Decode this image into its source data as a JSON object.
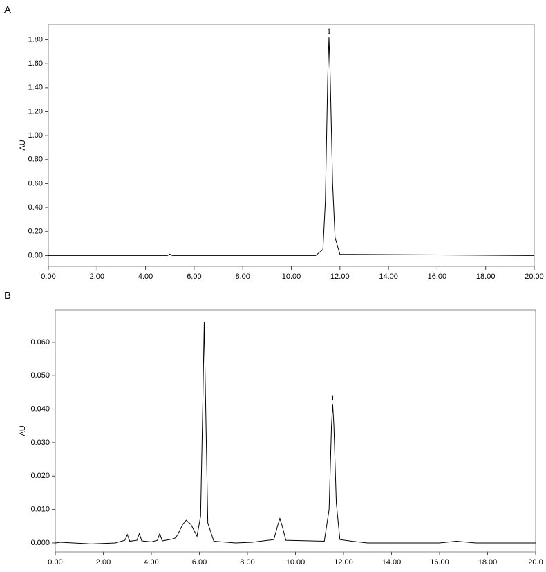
{
  "chart_data": [
    {
      "type": "line",
      "label": "A",
      "y_label": "AU",
      "x": [
        0,
        2.8,
        4.9,
        5.0,
        5.1,
        11.0,
        11.3,
        11.4,
        11.5,
        11.55,
        11.6,
        11.7,
        11.8,
        12.0,
        20
      ],
      "values": [
        0,
        0,
        0,
        0.012,
        0,
        0,
        0.05,
        0.45,
        1.5,
        1.82,
        1.5,
        0.6,
        0.15,
        0.01,
        0
      ],
      "color": "#000000",
      "xlim": [
        0,
        20
      ],
      "ylim": [
        -0.09,
        1.93
      ],
      "xticks": [
        {
          "value": 0,
          "label": "0.00"
        },
        {
          "value": 2,
          "label": "2.00"
        },
        {
          "value": 4,
          "label": "4.00"
        },
        {
          "value": 6,
          "label": "6.00"
        },
        {
          "value": 8,
          "label": "8.00"
        },
        {
          "value": 10,
          "label": "10.00"
        },
        {
          "value": 12,
          "label": "12.00"
        },
        {
          "value": 14,
          "label": "14.00"
        },
        {
          "value": 16,
          "label": "16.00"
        },
        {
          "value": 18,
          "label": "18.00"
        },
        {
          "value": 20,
          "label": "20.00"
        }
      ],
      "yticks": [
        {
          "value": 0,
          "label": "0.00"
        },
        {
          "value": 0.2,
          "label": "0.20"
        },
        {
          "value": 0.4,
          "label": "0.40"
        },
        {
          "value": 0.6,
          "label": "0.60"
        },
        {
          "value": 0.8,
          "label": "0.80"
        },
        {
          "value": 1.0,
          "label": "1.00"
        },
        {
          "value": 1.2,
          "label": "1.20"
        },
        {
          "value": 1.4,
          "label": "1.40"
        },
        {
          "value": 1.6,
          "label": "1.60"
        },
        {
          "value": 1.8,
          "label": "1.80"
        }
      ],
      "annotations": [
        {
          "text": "1",
          "x": 11.55,
          "y": 1.82
        }
      ]
    },
    {
      "type": "line",
      "label": "B",
      "y_label": "AU",
      "x": [
        0,
        0.2,
        1.5,
        2.5,
        2.9,
        3.0,
        3.1,
        3.4,
        3.5,
        3.6,
        4.0,
        4.25,
        4.35,
        4.45,
        4.9,
        5.0,
        5.1,
        5.3,
        5.45,
        5.65,
        5.9,
        6.05,
        6.15,
        6.2,
        6.25,
        6.35,
        6.6,
        7.5,
        8.2,
        9.1,
        9.25,
        9.35,
        9.45,
        9.6,
        11.2,
        11.4,
        11.5,
        11.55,
        11.6,
        11.7,
        11.85,
        12.35,
        13,
        16,
        16.7,
        17.5,
        20
      ],
      "values": [
        0,
        0.0002,
        -0.0003,
        0,
        0.0008,
        0.0025,
        0.0005,
        0.0008,
        0.0028,
        0.0006,
        0.0003,
        0.0008,
        0.0028,
        0.0006,
        0.0012,
        0.0015,
        0.0025,
        0.0055,
        0.0068,
        0.0055,
        0.002,
        0.008,
        0.045,
        0.066,
        0.045,
        0.006,
        0.0005,
        0,
        0.0002,
        0.001,
        0.005,
        0.0073,
        0.005,
        0.0008,
        0.0005,
        0.01,
        0.035,
        0.0415,
        0.035,
        0.012,
        0.001,
        0.0005,
        0,
        0,
        0.0005,
        0,
        0
      ],
      "color": "#000000",
      "xlim": [
        0,
        20
      ],
      "ylim": [
        -0.0027,
        0.0697
      ],
      "xticks": [
        {
          "value": 0,
          "label": "0.00"
        },
        {
          "value": 2,
          "label": "2.00"
        },
        {
          "value": 4,
          "label": "4.00"
        },
        {
          "value": 6,
          "label": "6.00"
        },
        {
          "value": 8,
          "label": "8.00"
        },
        {
          "value": 10,
          "label": "10.00"
        },
        {
          "value": 12,
          "label": "12.00"
        },
        {
          "value": 14,
          "label": "14.00"
        },
        {
          "value": 16,
          "label": "16.00"
        },
        {
          "value": 18,
          "label": "18.00"
        },
        {
          "value": 20,
          "label": "20.0"
        }
      ],
      "yticks": [
        {
          "value": 0,
          "label": "0.000"
        },
        {
          "value": 0.01,
          "label": "0.010"
        },
        {
          "value": 0.02,
          "label": "0.020"
        },
        {
          "value": 0.03,
          "label": "0.030"
        },
        {
          "value": 0.04,
          "label": "0.040"
        },
        {
          "value": 0.05,
          "label": "0.050"
        },
        {
          "value": 0.06,
          "label": "0.060"
        }
      ],
      "annotations": [
        {
          "text": "1",
          "x": 11.55,
          "y": 0.0415
        }
      ]
    }
  ]
}
